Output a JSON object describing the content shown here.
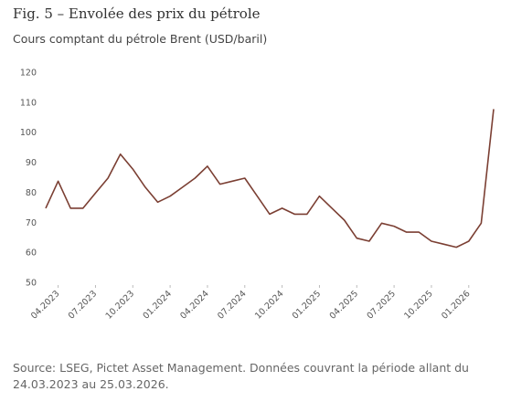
{
  "chart_data": {
    "type": "line",
    "title": "Fig. 5 – Envolée des prix du pétrole",
    "subtitle": "Cours comptant du pétrole Brent (USD/baril)",
    "source": "Source: LSEG, Pictet Asset Management. Données couvrant la période allant du 24.03.2023 au 25.03.2026.",
    "x": [
      "2023-03",
      "2023-04",
      "2023-05",
      "2023-06",
      "2023-07",
      "2023-08",
      "2023-09",
      "2023-10",
      "2023-11",
      "2023-12",
      "2024-01",
      "2024-02",
      "2024-03",
      "2024-04",
      "2024-05",
      "2024-06",
      "2024-07",
      "2024-08",
      "2024-09",
      "2024-10",
      "2024-11",
      "2024-12",
      "2025-01",
      "2025-02",
      "2025-03",
      "2025-04",
      "2025-05",
      "2025-06",
      "2025-07",
      "2025-08",
      "2025-09",
      "2025-10",
      "2025-11",
      "2025-12",
      "2026-01",
      "2026-02",
      "2026-03"
    ],
    "series": [
      {
        "name": "Brent",
        "color": "#7b3f33",
        "values": [
          75,
          84,
          75,
          75,
          80,
          85,
          93,
          88,
          82,
          77,
          79,
          82,
          85,
          89,
          83,
          84,
          85,
          79,
          73,
          75,
          73,
          73,
          79,
          75,
          71,
          65,
          64,
          70,
          69,
          67,
          67,
          64,
          63,
          62,
          64,
          70,
          108
        ]
      }
    ],
    "xlim": [
      "2023-03",
      "2026-03"
    ],
    "xticks": [
      {
        "value": "2023-04",
        "label": "04.2023"
      },
      {
        "value": "2023-07",
        "label": "07.2023"
      },
      {
        "value": "2023-10",
        "label": "10.2023"
      },
      {
        "value": "2024-01",
        "label": "01.2024"
      },
      {
        "value": "2024-04",
        "label": "04.2024"
      },
      {
        "value": "2024-07",
        "label": "07.2024"
      },
      {
        "value": "2024-10",
        "label": "10.2024"
      },
      {
        "value": "2025-01",
        "label": "01.2025"
      },
      {
        "value": "2025-04",
        "label": "04.2025"
      },
      {
        "value": "2025-07",
        "label": "07.2025"
      },
      {
        "value": "2025-10",
        "label": "10.2025"
      },
      {
        "value": "2026-01",
        "label": "01.2026"
      }
    ],
    "ylim": [
      50,
      120
    ],
    "yticks": [
      50,
      60,
      70,
      80,
      90,
      100,
      110,
      120
    ],
    "grid": false
  }
}
